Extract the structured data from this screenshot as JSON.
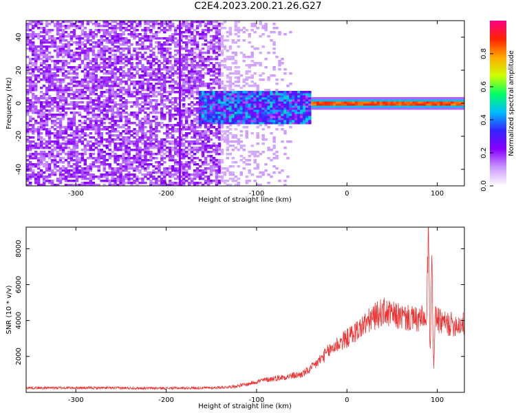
{
  "figure": {
    "title": "C2E4.2023.200.21.26.G27"
  },
  "chart_data": [
    {
      "type": "heatmap",
      "title": "",
      "xlabel": "Height of straight line (km)",
      "ylabel": "Frequency (Hz)",
      "xlim": [
        -355,
        130
      ],
      "ylim": [
        -50,
        50
      ],
      "xticks": [
        -300,
        -200,
        -100,
        0,
        100
      ],
      "yticks": [
        -40,
        -20,
        0,
        20,
        40
      ],
      "colorbar": {
        "label": "Normalized spectral amplitude",
        "range": [
          0.0,
          1.0
        ],
        "ticks": [
          0.0,
          0.2,
          0.4,
          0.6,
          0.8
        ],
        "colors": [
          "#ffffff",
          "#cc99ff",
          "#8800ff",
          "#3322ff",
          "#00bbff",
          "#00ff66",
          "#ccff00",
          "#ffaa00",
          "#ff2200",
          "#ff0088"
        ]
      },
      "features": [
        {
          "x_range": [
            -355,
            -140
          ],
          "freq_range": [
            -50,
            50
          ],
          "amplitude": 0.08
        },
        {
          "x_range": [
            -165,
            -40
          ],
          "freq_range": [
            -12,
            8
          ],
          "amplitude": 0.3
        },
        {
          "x_range": [
            -40,
            130
          ],
          "freq_range": [
            -2,
            2
          ],
          "amplitude": 0.9
        }
      ]
    },
    {
      "type": "line",
      "title": "",
      "xlabel": "Height of straight line (km)",
      "ylabel": "SNR (10 * v/v)",
      "xlim": [
        -355,
        130
      ],
      "ylim": [
        0,
        9200
      ],
      "xticks": [
        -300,
        -200,
        -100,
        0,
        100
      ],
      "yticks": [
        2000,
        4000,
        6000,
        8000
      ],
      "color": "#ee3333",
      "series": [
        {
          "x": [
            -355,
            -300,
            -250,
            -200,
            -150,
            -130,
            -110,
            -100,
            -90,
            -70,
            -50,
            -40,
            -30,
            -20,
            -10,
            0,
            10,
            20,
            30,
            40,
            50,
            60,
            70,
            80,
            85,
            88,
            90,
            92,
            94,
            96,
            98,
            100,
            110,
            120,
            130
          ],
          "y": [
            250,
            250,
            240,
            230,
            250,
            300,
            450,
            600,
            700,
            850,
            1000,
            1300,
            1800,
            2300,
            2700,
            3000,
            3400,
            3800,
            4200,
            4500,
            4300,
            4200,
            4100,
            4000,
            4200,
            3500,
            9200,
            2000,
            7000,
            1500,
            4500,
            4000,
            3800,
            3800,
            3800
          ]
        }
      ]
    }
  ]
}
